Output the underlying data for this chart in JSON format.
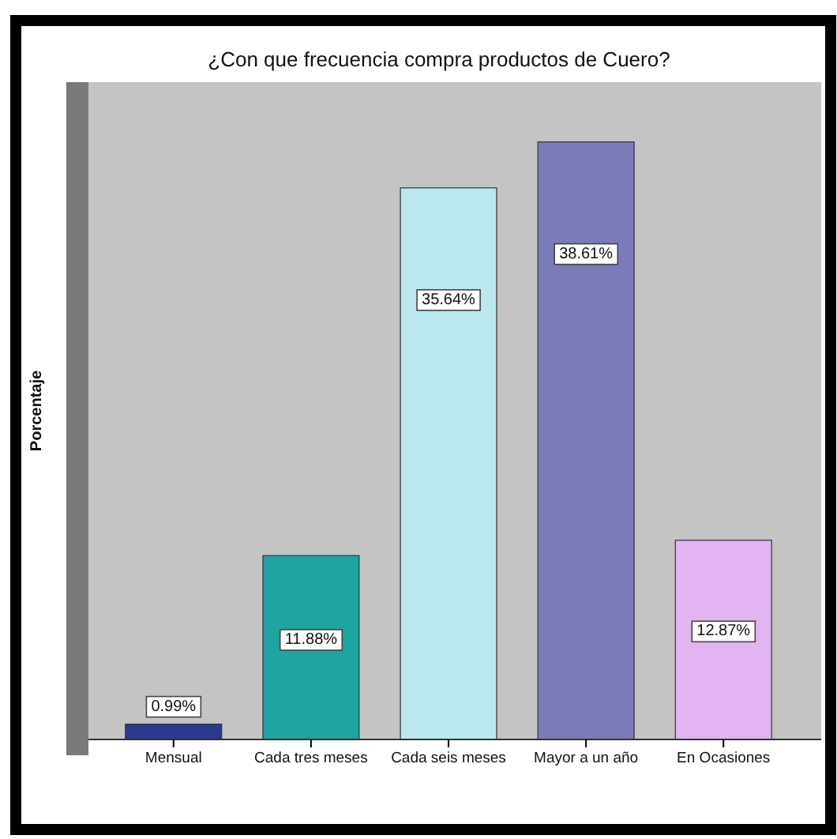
{
  "chart_data": {
    "type": "bar",
    "title": "¿Con que frecuencia compra productos de Cuero?",
    "ylabel": "Porcentaje",
    "categories": [
      "Mensual",
      "Cada tres meses",
      "Cada seis meses",
      "Mayor a un año",
      "En Ocasiones"
    ],
    "values": [
      0.99,
      11.88,
      35.64,
      38.61,
      12.87
    ],
    "colors": [
      "#2b3a8f",
      "#1ea5a2",
      "#b9e9ee",
      "#7b7bba",
      "#e2b4f2"
    ],
    "value_labels": [
      "0.99%",
      "11.88%",
      "35.64%",
      "38.61%",
      "12.87%"
    ]
  }
}
